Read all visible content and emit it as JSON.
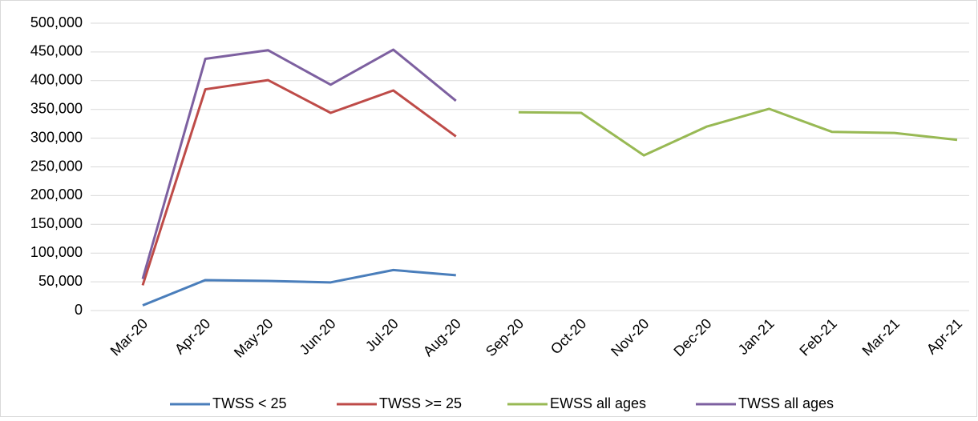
{
  "chart_data": {
    "type": "line",
    "categories": [
      "Mar-20",
      "Apr-20",
      "May-20",
      "Jun-20",
      "Jul-20",
      "Aug-20",
      "Sep-20",
      "Oct-20",
      "Nov-20",
      "Dec-20",
      "Jan-21",
      "Feb-21",
      "Mar-21",
      "Apr-21"
    ],
    "series": [
      {
        "name": "TWSS < 25",
        "color": "#4a7ebb",
        "values": [
          9000,
          53000,
          51500,
          49000,
          70500,
          61500,
          null,
          null,
          null,
          null,
          null,
          null,
          null,
          null
        ]
      },
      {
        "name": "TWSS >= 25",
        "color": "#be4b48",
        "values": [
          44000,
          385000,
          401000,
          344000,
          383000,
          303000,
          null,
          null,
          null,
          null,
          null,
          null,
          null,
          null
        ]
      },
      {
        "name": "EWSS all ages",
        "color": "#98b954",
        "values": [
          null,
          null,
          null,
          null,
          null,
          null,
          345000,
          344000,
          270000,
          320000,
          351000,
          311000,
          309000,
          297000
        ]
      },
      {
        "name": "TWSS all ages",
        "color": "#7d60a0",
        "values": [
          55000,
          438000,
          453000,
          393000,
          454000,
          365000,
          null,
          null,
          null,
          null,
          null,
          null,
          null,
          null
        ]
      }
    ],
    "ylim": [
      0,
      500000
    ],
    "yticks": [
      0,
      {
        "value": 50000,
        "label": "50,000"
      },
      {
        "value": 100000,
        "label": "100,000"
      },
      {
        "value": 150000,
        "label": "150,000"
      },
      {
        "value": 200000,
        "label": "200,000"
      },
      {
        "value": 250000,
        "label": "250,000"
      },
      {
        "value": 300000,
        "label": "300,000"
      },
      {
        "value": 350000,
        "label": "350,000"
      },
      {
        "value": 400000,
        "label": "400,000"
      },
      {
        "value": 450000,
        "label": "450,000"
      },
      {
        "value": 500000,
        "label": "500,000"
      }
    ],
    "grid": true,
    "legend": "bottom"
  }
}
